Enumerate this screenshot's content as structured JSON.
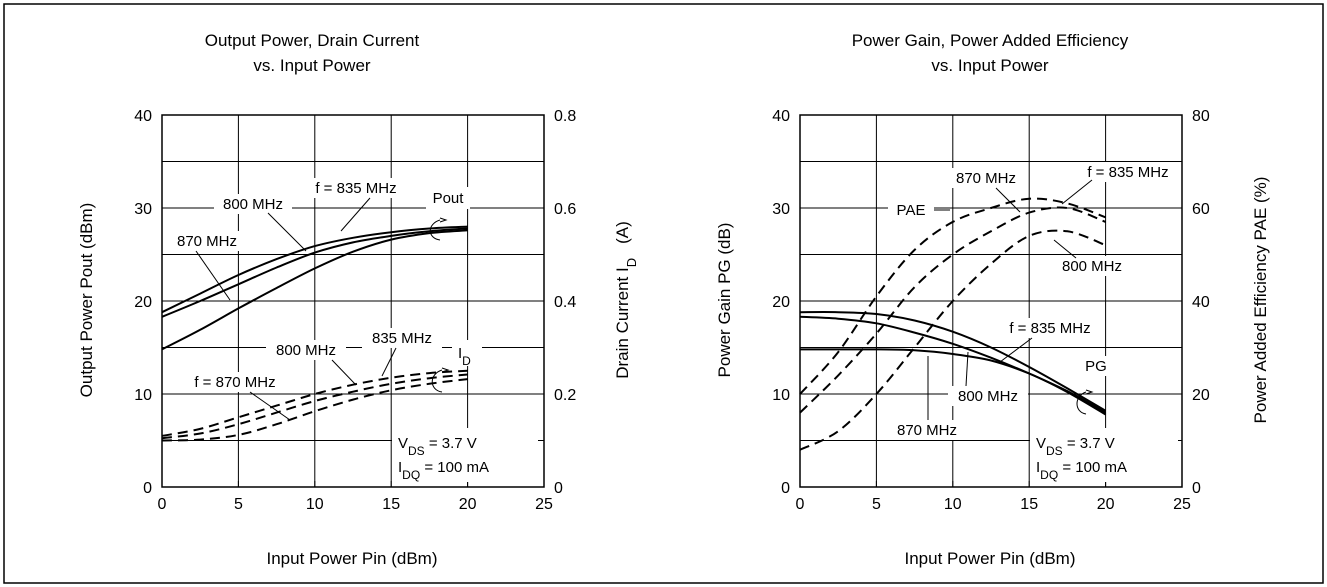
{
  "chart_data": [
    {
      "type": "line",
      "title_line1": "Output Power, Drain Current",
      "title_line2": "vs. Input Power",
      "xlabel": "Input Power   Pin  (dBm)",
      "ylabel_left": "Output Power   Pout  (dBm)",
      "ylabel_right_main": "Drain Current  I",
      "ylabel_right_sub": "D",
      "ylabel_right_unit": "(A)",
      "xlim": [
        0,
        25
      ],
      "ylim_left": [
        0,
        40
      ],
      "ylim_right": [
        0,
        0.8
      ],
      "xticks": [
        "0",
        "5",
        "10",
        "15",
        "20",
        "25"
      ],
      "yticks_left": [
        "0",
        "10",
        "20",
        "30",
        "40"
      ],
      "yticks_right": [
        "0",
        "0.2",
        "0.4",
        "0.6",
        "0.8"
      ],
      "grid": true,
      "series": [
        {
          "name": "870 MHz",
          "axis": "left",
          "dash": false,
          "x": [
            0,
            2.5,
            5,
            7.5,
            10,
            12.5,
            15,
            17.5,
            20
          ],
          "y": [
            18.8,
            20.8,
            22.8,
            24.5,
            25.9,
            26.8,
            27.4,
            27.8,
            28.0
          ]
        },
        {
          "name": "800 MHz",
          "axis": "left",
          "dash": false,
          "x": [
            0,
            2.5,
            5,
            7.5,
            10,
            12.5,
            15,
            17.5,
            20
          ],
          "y": [
            18.3,
            20.0,
            21.8,
            23.6,
            25.2,
            26.3,
            27.0,
            27.5,
            27.8
          ]
        },
        {
          "name": "f = 835 MHz",
          "axis": "left",
          "dash": false,
          "x": [
            0,
            2.5,
            5,
            7.5,
            10,
            12.5,
            15,
            17.5,
            20
          ],
          "y": [
            14.8,
            16.9,
            19.2,
            21.4,
            23.5,
            25.3,
            26.6,
            27.3,
            27.6
          ]
        },
        {
          "name": "f = 870 MHz",
          "axis": "right",
          "dash": true,
          "x": [
            0,
            2.5,
            5,
            7.5,
            10,
            12.5,
            15,
            17.5,
            20
          ],
          "y": [
            0.11,
            0.125,
            0.15,
            0.175,
            0.2,
            0.22,
            0.235,
            0.245,
            0.25
          ]
        },
        {
          "name": "800 MHz",
          "axis": "right",
          "dash": true,
          "x": [
            0,
            2.5,
            5,
            7.5,
            10,
            12.5,
            15,
            17.5,
            20
          ],
          "y": [
            0.105,
            0.115,
            0.135,
            0.16,
            0.185,
            0.205,
            0.222,
            0.234,
            0.242
          ]
        },
        {
          "name": "835 MHz",
          "axis": "right",
          "dash": true,
          "x": [
            0,
            2.5,
            5,
            7.5,
            10,
            12.5,
            15,
            17.5,
            20
          ],
          "y": [
            0.1,
            0.102,
            0.112,
            0.135,
            0.163,
            0.188,
            0.208,
            0.222,
            0.232
          ]
        }
      ],
      "labels": {
        "f835": "f = 835 MHz",
        "m800": "800 MHz",
        "m870": "870 MHz",
        "pout": "Pout",
        "id_main": "I",
        "id_sub": "D",
        "id_800": "800 MHz",
        "id_835": "835 MHz",
        "id_870": "f = 870 MHz",
        "vds_main": "V",
        "vds_sub": "DS",
        "vds_rest": " = 3.7 V",
        "idq_main": "I",
        "idq_sub": "DQ",
        "idq_rest": " = 100 mA"
      }
    },
    {
      "type": "line",
      "title_line1": "Power Gain, Power Added Efficiency",
      "title_line2": "vs. Input Power",
      "xlabel": "Input Power   Pin  (dBm)",
      "ylabel_left": "Power Gain   PG  (dB)",
      "ylabel_right": "Power Added Efficiency   PAE   (%)",
      "xlim": [
        0,
        25
      ],
      "ylim_left": [
        0,
        40
      ],
      "ylim_right": [
        0,
        80
      ],
      "xticks": [
        "0",
        "5",
        "10",
        "15",
        "20",
        "25"
      ],
      "yticks_left": [
        "0",
        "10",
        "20",
        "30",
        "40"
      ],
      "yticks_right": [
        "0",
        "20",
        "40",
        "60",
        "80"
      ],
      "grid": true,
      "series": [
        {
          "name": "870 MHz",
          "axis": "left",
          "dash": false,
          "x": [
            0,
            2.5,
            5,
            7.5,
            10,
            12.5,
            15,
            17.5,
            20
          ],
          "y": [
            14.8,
            14.8,
            14.8,
            14.7,
            14.3,
            13.6,
            12.2,
            10.2,
            7.8
          ]
        },
        {
          "name": "800 MHz",
          "axis": "left",
          "dash": false,
          "x": [
            0,
            2.5,
            5,
            7.5,
            10,
            12.5,
            15,
            17.5,
            20
          ],
          "y": [
            18.3,
            18.1,
            17.6,
            16.6,
            15.4,
            13.9,
            12.2,
            10.3,
            8.0
          ]
        },
        {
          "name": "f = 835 MHz",
          "axis": "left",
          "dash": false,
          "x": [
            0,
            2.5,
            5,
            7.5,
            10,
            12.5,
            15,
            17.5,
            20
          ],
          "y": [
            18.8,
            18.8,
            18.6,
            17.9,
            16.7,
            15.0,
            12.9,
            10.6,
            8.2
          ]
        },
        {
          "name": "870 MHz",
          "axis": "right",
          "dash": true,
          "x": [
            0,
            2.5,
            5,
            7.5,
            10,
            12.5,
            15,
            17.5,
            20
          ],
          "y": [
            20,
            29,
            41,
            51,
            57,
            60,
            62,
            61,
            58
          ]
        },
        {
          "name": "f = 835 MHz",
          "axis": "right",
          "dash": true,
          "x": [
            0,
            2.5,
            5,
            7.5,
            10,
            12.5,
            15,
            17.5,
            20
          ],
          "y": [
            16,
            24,
            33,
            43,
            50,
            55,
            59,
            60,
            57
          ]
        },
        {
          "name": "800 MHz",
          "axis": "right",
          "dash": true,
          "x": [
            0,
            2.5,
            5,
            7.5,
            10,
            12.5,
            15,
            17.5,
            20
          ],
          "y": [
            8,
            12,
            20,
            30,
            40,
            48,
            54,
            55,
            52
          ]
        }
      ],
      "labels": {
        "pae": "PAE",
        "m870_top": "870 MHz",
        "f835_top": "f = 835 MHz",
        "m800_top": "800 MHz",
        "f835_pg": "f = 835 MHz",
        "m800_pg": "800 MHz",
        "m870_pg": "870 MHz",
        "pg": "PG",
        "vds_main": "V",
        "vds_sub": "DS",
        "vds_rest": " = 3.7 V",
        "idq_main": "I",
        "idq_sub": "DQ",
        "idq_rest": " = 100 mA"
      }
    }
  ]
}
